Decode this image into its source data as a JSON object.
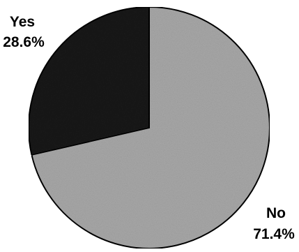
{
  "chart_data": {
    "type": "pie",
    "title": "",
    "slices": [
      {
        "label": "Yes",
        "value": 28.6,
        "value_label": "28.6%",
        "color": "#1a1a1a"
      },
      {
        "label": "No",
        "value": 71.4,
        "value_label": "71.4%",
        "color": "#a8a8a8"
      }
    ],
    "legend": "none",
    "edge_color": "#000000"
  }
}
